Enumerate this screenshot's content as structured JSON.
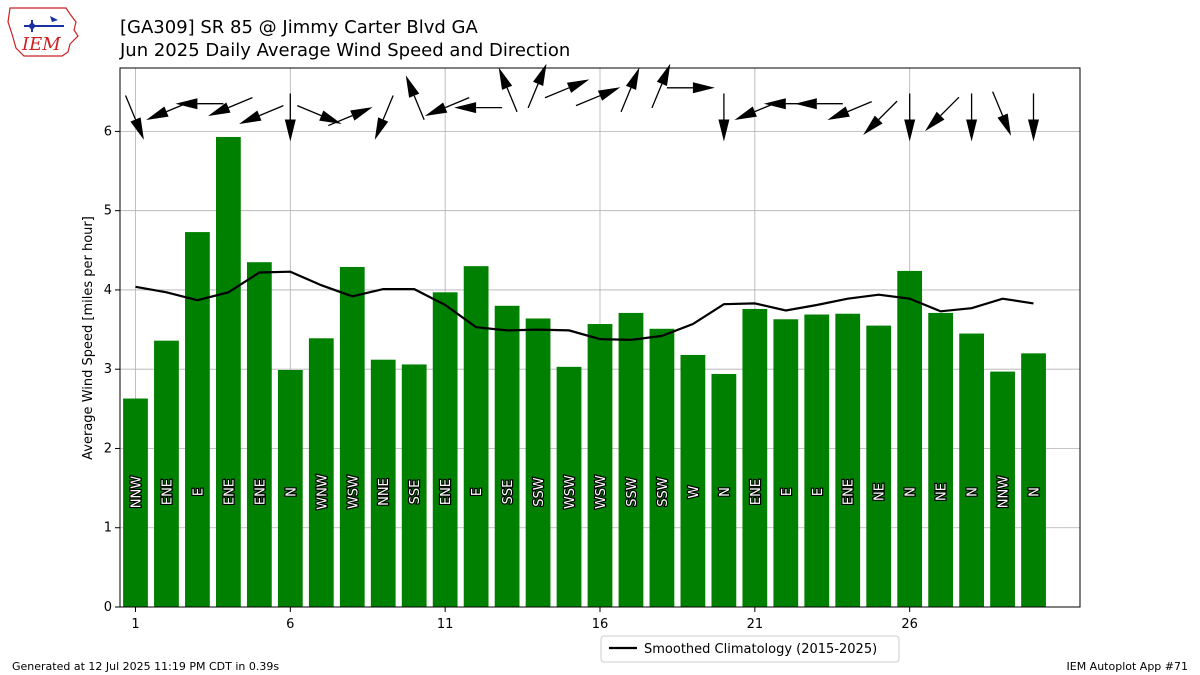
{
  "header": {
    "title_line1": "[GA309] SR 85 @ Jimmy Carter Blvd  GA",
    "title_line2": "Jun 2025 Daily Average Wind Speed and Direction"
  },
  "logo": {
    "text": "IEM"
  },
  "footer": {
    "left": "Generated at 12 Jul 2025 11:19 PM CDT in 0.39s",
    "right": "IEM Autoplot App #71"
  },
  "colors": {
    "bar": "#008000",
    "line": "#000000",
    "grid": "#b0b0b0",
    "logo": "#cc2222"
  },
  "chart_data": {
    "type": "bar",
    "ylabel": "Average Wind Speed [miles per hour]",
    "ylim": [
      0,
      6.8
    ],
    "xlim": [
      0.5,
      31.5
    ],
    "yticks": [
      0,
      1,
      2,
      3,
      4,
      5,
      6
    ],
    "xticks": [
      1,
      6,
      11,
      16,
      21,
      26
    ],
    "grid": true,
    "days": [
      1,
      2,
      3,
      4,
      5,
      6,
      7,
      8,
      9,
      10,
      11,
      12,
      13,
      14,
      15,
      16,
      17,
      18,
      19,
      20,
      21,
      22,
      23,
      24,
      25,
      26,
      27,
      28,
      29,
      30
    ],
    "values": [
      2.63,
      3.36,
      4.73,
      5.93,
      4.35,
      2.99,
      3.39,
      4.29,
      3.12,
      3.06,
      3.97,
      4.3,
      3.8,
      3.64,
      3.03,
      3.57,
      3.71,
      3.51,
      3.18,
      2.94,
      3.76,
      3.63,
      3.69,
      3.7,
      3.55,
      4.24,
      3.71,
      3.45,
      2.97,
      3.2
    ],
    "directions": [
      "NNW",
      "ENE",
      "E",
      "ENE",
      "ENE",
      "N",
      "WNW",
      "WSW",
      "NNE",
      "SSE",
      "ENE",
      "E",
      "SSE",
      "SSW",
      "WSW",
      "WSW",
      "SSW",
      "SSW",
      "W",
      "N",
      "ENE",
      "E",
      "E",
      "ENE",
      "NE",
      "N",
      "NE",
      "N",
      "NNW",
      "N"
    ],
    "direction_degrees": [
      337.5,
      67.5,
      90,
      67.5,
      67.5,
      0,
      292.5,
      247.5,
      22.5,
      157.5,
      67.5,
      90,
      157.5,
      202.5,
      247.5,
      247.5,
      202.5,
      202.5,
      270,
      0,
      67.5,
      90,
      90,
      67.5,
      45,
      0,
      45,
      0,
      337.5,
      0
    ],
    "series": [
      {
        "name": "Smoothed Climatology (2015-2025)",
        "values": [
          4.04,
          3.97,
          3.87,
          3.97,
          4.22,
          4.23,
          4.06,
          3.92,
          4.01,
          4.01,
          3.81,
          3.53,
          3.49,
          3.5,
          3.49,
          3.38,
          3.37,
          3.42,
          3.57,
          3.82,
          3.83,
          3.74,
          3.81,
          3.89,
          3.94,
          3.89,
          3.73,
          3.77,
          3.89,
          3.83
        ]
      }
    ],
    "legend": "bottom-center"
  }
}
